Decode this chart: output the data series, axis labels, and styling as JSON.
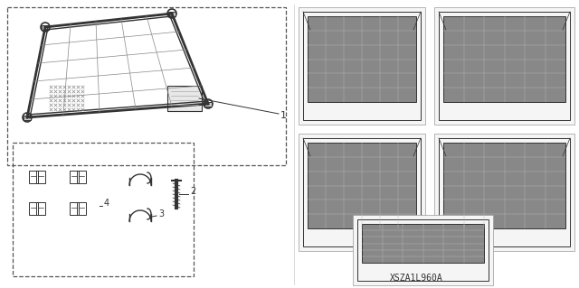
{
  "title": "",
  "background_color": "#ffffff",
  "diagram_code": "XSZA1L960A",
  "label_1": "1",
  "label_2": "2",
  "label_3": "3",
  "label_4": "4",
  "font_size_label": 7,
  "font_size_code": 7,
  "outer_box_color": "#555555",
  "inner_box_color": "#777777",
  "line_color": "#333333",
  "net_color": "#888888",
  "illustration_color": "#444444"
}
